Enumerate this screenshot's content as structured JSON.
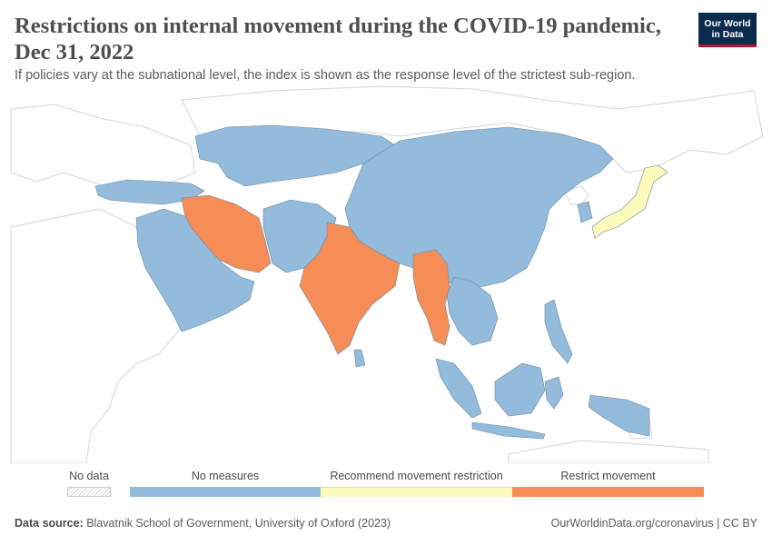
{
  "title": "Restrictions on internal movement during the COVID-19 pandemic, Dec 31, 2022",
  "subtitle": "If policies vary at the subnational level, the index is shown as the response level of the strictest sub-region.",
  "logo": {
    "line1": "Our World",
    "line2": "in Data"
  },
  "legend": {
    "no_data_label": "No data",
    "categories": [
      {
        "label": "No measures",
        "color": "#93bcdc"
      },
      {
        "label": "Recommend movement restriction",
        "color": "#fdfbbc"
      },
      {
        "label": "Restrict movement",
        "color": "#f68c56"
      }
    ]
  },
  "colors": {
    "no_measures": "#93bcdc",
    "recommend": "#fdfbbc",
    "restrict": "#f68c56",
    "no_data_outline": "#d6d6d6",
    "title": "#4e4e4e"
  },
  "regions": [
    {
      "name": "Iran",
      "category": "Restrict movement"
    },
    {
      "name": "India",
      "category": "Restrict movement"
    },
    {
      "name": "Myanmar",
      "category": "Restrict movement"
    },
    {
      "name": "Japan",
      "category": "Recommend movement restriction"
    },
    {
      "name": "China",
      "category": "No measures"
    },
    {
      "name": "Kazakhstan",
      "category": "No measures"
    },
    {
      "name": "Saudi Arabia",
      "category": "No measures"
    },
    {
      "name": "Indonesia",
      "category": "No measures"
    }
  ],
  "footer": {
    "source_label": "Data source:",
    "source_text": "Blavatnik School of Government, University of Oxford (2023)",
    "right_text": "OurWorldinData.org/coronavirus | CC BY"
  }
}
